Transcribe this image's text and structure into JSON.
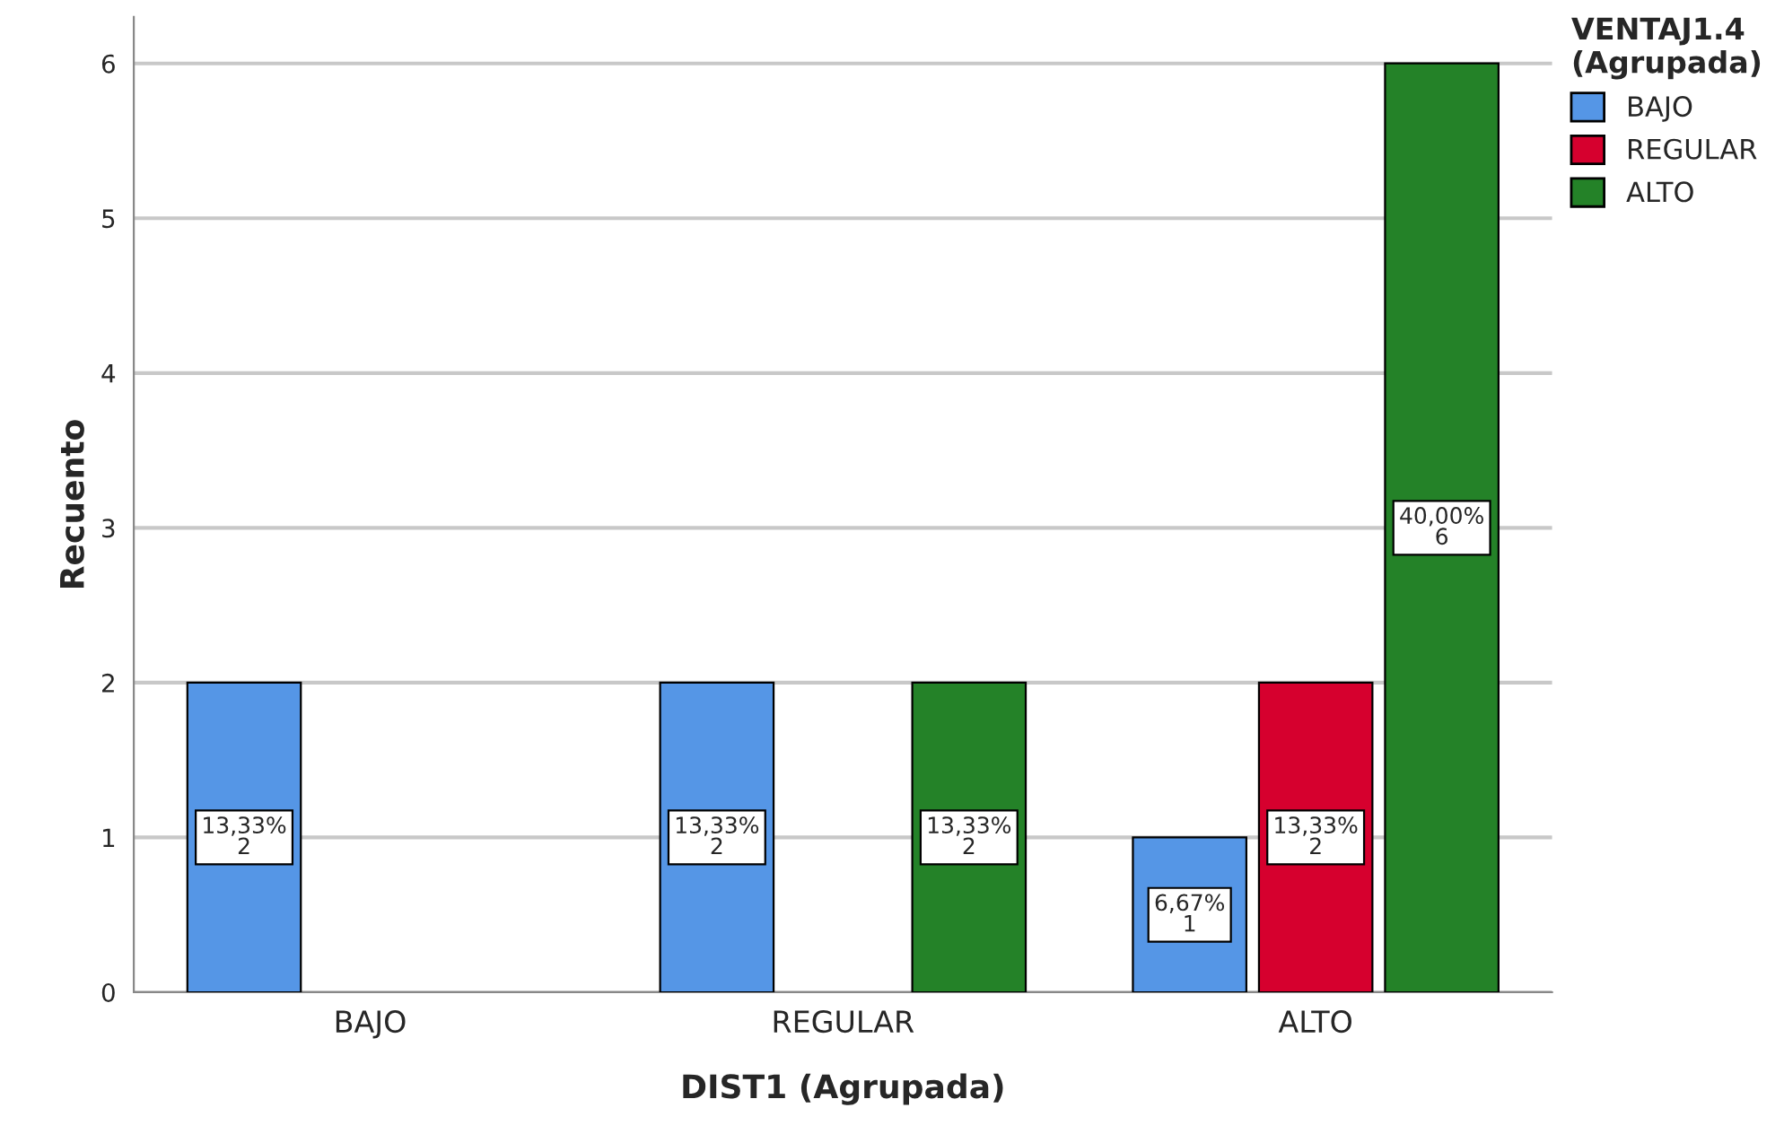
{
  "chart_data": {
    "type": "bar",
    "xlabel": "DIST1 (Agrupada)",
    "ylabel": "Recuento",
    "legend_title": "VENTAJ1.4\n(Agrupada)",
    "categories": [
      "BAJO",
      "REGULAR",
      "ALTO"
    ],
    "series": [
      {
        "name": "BAJO",
        "color": "#5596e6",
        "values": [
          2,
          2,
          1
        ],
        "value_labels": [
          "13,33%\n2",
          "13,33%\n2",
          "6,67%\n1"
        ]
      },
      {
        "name": "REGULAR",
        "color": "#d6002e",
        "values": [
          null,
          null,
          2
        ],
        "value_labels": [
          null,
          null,
          "13,33%\n2"
        ]
      },
      {
        "name": "ALTO",
        "color": "#248228",
        "values": [
          null,
          2,
          6
        ],
        "value_labels": [
          null,
          "13,33%\n2",
          "40,00%\n6"
        ]
      }
    ],
    "ylim": [
      0,
      6.3
    ],
    "yticks": [
      0,
      1,
      2,
      3,
      4,
      5,
      6
    ],
    "grid": "y",
    "legend": "top right"
  }
}
